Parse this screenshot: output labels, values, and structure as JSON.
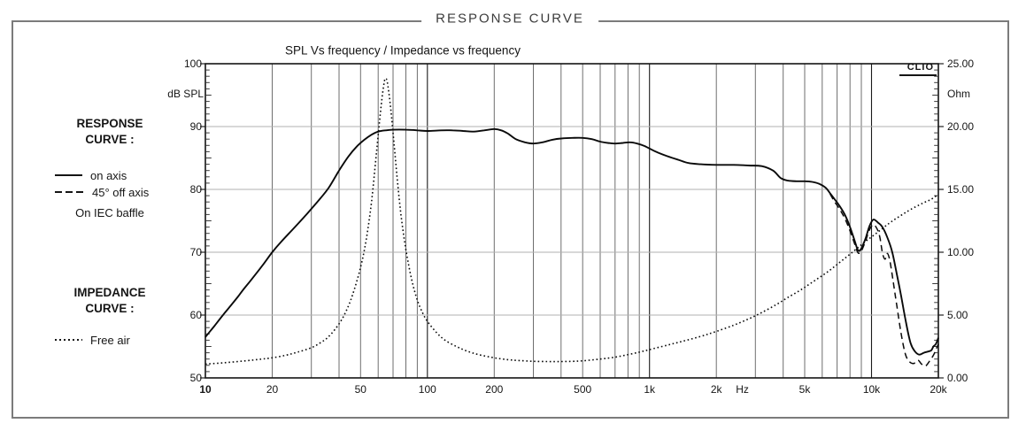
{
  "panel": {
    "title": "RESPONSE CURVE"
  },
  "chart": {
    "title": "SPL Vs frequency / Impedance vs frequency",
    "watermark": "CLIO",
    "left_axis": {
      "unit": "dB SPL",
      "tick_labels": [
        "100",
        "90",
        "80",
        "70",
        "60",
        "50"
      ]
    },
    "right_axis": {
      "unit": "Ohm",
      "tick_labels": [
        "25.00",
        "20.00",
        "15.00",
        "10.00",
        "5.00",
        "0.00"
      ]
    },
    "x_axis": {
      "unit_label": "Hz",
      "tick_labels": [
        {
          "text": "10",
          "f": 10,
          "bold": true
        },
        {
          "text": "20",
          "f": 20
        },
        {
          "text": "50",
          "f": 50
        },
        {
          "text": "100",
          "f": 100
        },
        {
          "text": "200",
          "f": 200
        },
        {
          "text": "500",
          "f": 500
        },
        {
          "text": "1k",
          "f": 1000
        },
        {
          "text": "2k",
          "f": 2000
        },
        {
          "text": "Hz",
          "f": 2620
        },
        {
          "text": "5k",
          "f": 5000
        },
        {
          "text": "10k",
          "f": 10000
        },
        {
          "text": "20k",
          "f": 20000
        }
      ]
    }
  },
  "sidebar": {
    "response_heading_line1": "RESPONSE",
    "response_heading_line2": "CURVE :",
    "legend_on_axis": "on axis",
    "legend_off_axis": "45° off axis",
    "baffle_note": "On IEC baffle",
    "impedance_heading_line1": "IMPEDANCE",
    "impedance_heading_line2": "CURVE :",
    "legend_free_air": "Free air"
  },
  "colors": {
    "curve": "#0a0a0a",
    "frame": "#141414",
    "grid_vertical": "#6e6e6e",
    "grid_decade": "#1a1a1a",
    "grid_horizontal": "#b0b0b0",
    "panel_border": "#7b7b7b"
  },
  "chart_data": {
    "type": "line",
    "title": "SPL Vs frequency / Impedance vs frequency",
    "x_scale": "log",
    "x_range_hz": [
      10,
      20000
    ],
    "y_left": {
      "label": "dB SPL",
      "range": [
        50,
        100
      ],
      "major_step": 10
    },
    "y_right": {
      "label": "Ohm",
      "range": [
        0,
        25
      ],
      "major_step": 5
    },
    "grid": {
      "horizontal_db": [
        60,
        70,
        80,
        90
      ],
      "vertical": "log minor lines 2-9 each decade plus decade lines"
    },
    "legend_position": "left margin",
    "series": [
      {
        "name": "on axis",
        "axis": "left",
        "unit": "dB SPL",
        "style": "solid",
        "points": [
          [
            10,
            56.5
          ],
          [
            11,
            58.3
          ],
          [
            12,
            60
          ],
          [
            13,
            61.5
          ],
          [
            14,
            62.9
          ],
          [
            15,
            64.3
          ],
          [
            16,
            65.5
          ],
          [
            18,
            67.8
          ],
          [
            20,
            70
          ],
          [
            22,
            71.7
          ],
          [
            25,
            73.8
          ],
          [
            28,
            75.7
          ],
          [
            30,
            76.9
          ],
          [
            33,
            78.6
          ],
          [
            36,
            80.3
          ],
          [
            40,
            83
          ],
          [
            44,
            85.2
          ],
          [
            48,
            86.8
          ],
          [
            52,
            87.9
          ],
          [
            56,
            88.7
          ],
          [
            60,
            89.2
          ],
          [
            65,
            89.4
          ],
          [
            70,
            89.5
          ],
          [
            80,
            89.5
          ],
          [
            90,
            89.4
          ],
          [
            100,
            89.3
          ],
          [
            115,
            89.4
          ],
          [
            130,
            89.4
          ],
          [
            145,
            89.3
          ],
          [
            160,
            89.2
          ],
          [
            180,
            89.4
          ],
          [
            200,
            89.6
          ],
          [
            215,
            89.4
          ],
          [
            230,
            88.9
          ],
          [
            250,
            88
          ],
          [
            275,
            87.5
          ],
          [
            300,
            87.3
          ],
          [
            330,
            87.5
          ],
          [
            365,
            87.9
          ],
          [
            400,
            88.1
          ],
          [
            450,
            88.2
          ],
          [
            500,
            88.2
          ],
          [
            550,
            88
          ],
          [
            600,
            87.6
          ],
          [
            650,
            87.4
          ],
          [
            700,
            87.3
          ],
          [
            760,
            87.4
          ],
          [
            820,
            87.5
          ],
          [
            880,
            87.3
          ],
          [
            950,
            86.9
          ],
          [
            1000,
            86.5
          ],
          [
            1100,
            85.8
          ],
          [
            1200,
            85.3
          ],
          [
            1350,
            84.7
          ],
          [
            1500,
            84.2
          ],
          [
            1700,
            84
          ],
          [
            2000,
            83.9
          ],
          [
            2400,
            83.9
          ],
          [
            2800,
            83.8
          ],
          [
            3200,
            83.7
          ],
          [
            3600,
            83
          ],
          [
            3900,
            81.8
          ],
          [
            4200,
            81.4
          ],
          [
            4600,
            81.3
          ],
          [
            5000,
            81.3
          ],
          [
            5400,
            81.2
          ],
          [
            5800,
            80.9
          ],
          [
            6200,
            80.3
          ],
          [
            6500,
            79.4
          ],
          [
            6800,
            78.5
          ],
          [
            7200,
            77.3
          ],
          [
            7600,
            75.9
          ],
          [
            8000,
            74
          ],
          [
            8400,
            71.8
          ],
          [
            8700,
            70.3
          ],
          [
            9000,
            70.6
          ],
          [
            9400,
            72.2
          ],
          [
            9800,
            74.2
          ],
          [
            10200,
            75.2
          ],
          [
            10700,
            74.7
          ],
          [
            11200,
            74
          ],
          [
            11800,
            72.3
          ],
          [
            12400,
            70
          ],
          [
            13000,
            66.5
          ],
          [
            13600,
            63
          ],
          [
            14300,
            58.8
          ],
          [
            15000,
            55.5
          ],
          [
            15700,
            54.2
          ],
          [
            16400,
            53.7
          ],
          [
            17200,
            54
          ],
          [
            18000,
            54.2
          ],
          [
            18600,
            54.4
          ],
          [
            19000,
            55
          ],
          [
            19500,
            55.4
          ],
          [
            20000,
            56.4
          ]
        ]
      },
      {
        "name": "45° off axis",
        "axis": "left",
        "unit": "dB SPL",
        "style": "dashed",
        "points": [
          [
            6500,
            79.3
          ],
          [
            6800,
            78.1
          ],
          [
            7200,
            76.8
          ],
          [
            7600,
            75.3
          ],
          [
            8000,
            73.4
          ],
          [
            8400,
            71.3
          ],
          [
            8700,
            69.9
          ],
          [
            9000,
            70.2
          ],
          [
            9400,
            71.8
          ],
          [
            9800,
            73.6
          ],
          [
            10200,
            74.4
          ],
          [
            10600,
            73.7
          ],
          [
            10900,
            72.4
          ],
          [
            11200,
            69.9
          ],
          [
            11500,
            68.9
          ],
          [
            11800,
            69.8
          ],
          [
            12100,
            68.6
          ],
          [
            12500,
            65.5
          ],
          [
            13000,
            61.5
          ],
          [
            13600,
            57
          ],
          [
            14200,
            53.8
          ],
          [
            14800,
            52.6
          ],
          [
            15500,
            52.3
          ],
          [
            16200,
            52.8
          ],
          [
            16800,
            52.2
          ],
          [
            17500,
            51.9
          ],
          [
            18200,
            52.6
          ],
          [
            19000,
            53.6
          ],
          [
            19500,
            54.5
          ],
          [
            20000,
            55.4
          ]
        ]
      },
      {
        "name": "Free air",
        "axis": "right",
        "unit": "Ohm",
        "style": "dotted",
        "points": [
          [
            10,
            1.1
          ],
          [
            12,
            1.2
          ],
          [
            15,
            1.35
          ],
          [
            18,
            1.5
          ],
          [
            20,
            1.6
          ],
          [
            23,
            1.8
          ],
          [
            26,
            2.05
          ],
          [
            30,
            2.4
          ],
          [
            33,
            2.8
          ],
          [
            36,
            3.3
          ],
          [
            40,
            4.3
          ],
          [
            43,
            5.3
          ],
          [
            46,
            6.6
          ],
          [
            50,
            8.8
          ],
          [
            53,
            11
          ],
          [
            56,
            14
          ],
          [
            59,
            18
          ],
          [
            62,
            21.8
          ],
          [
            64,
            23.6
          ],
          [
            65,
            23.8
          ],
          [
            66,
            23.5
          ],
          [
            68,
            21.8
          ],
          [
            70,
            19.5
          ],
          [
            73,
            16
          ],
          [
            76,
            13
          ],
          [
            80,
            10.2
          ],
          [
            85,
            7.8
          ],
          [
            90,
            6.2
          ],
          [
            95,
            5.2
          ],
          [
            100,
            4.5
          ],
          [
            110,
            3.6
          ],
          [
            120,
            3
          ],
          [
            135,
            2.5
          ],
          [
            150,
            2.15
          ],
          [
            170,
            1.85
          ],
          [
            200,
            1.6
          ],
          [
            230,
            1.45
          ],
          [
            260,
            1.38
          ],
          [
            300,
            1.32
          ],
          [
            350,
            1.3
          ],
          [
            400,
            1.3
          ],
          [
            450,
            1.32
          ],
          [
            500,
            1.36
          ],
          [
            600,
            1.5
          ],
          [
            700,
            1.65
          ],
          [
            800,
            1.85
          ],
          [
            900,
            2.05
          ],
          [
            1000,
            2.25
          ],
          [
            1200,
            2.6
          ],
          [
            1400,
            2.9
          ],
          [
            1700,
            3.3
          ],
          [
            2000,
            3.7
          ],
          [
            2400,
            4.2
          ],
          [
            2800,
            4.7
          ],
          [
            3200,
            5.2
          ],
          [
            3700,
            5.8
          ],
          [
            4200,
            6.4
          ],
          [
            4800,
            7
          ],
          [
            5500,
            7.7
          ],
          [
            6300,
            8.4
          ],
          [
            7200,
            9.2
          ],
          [
            8200,
            10
          ],
          [
            9300,
            10.8
          ],
          [
            10500,
            11.5
          ],
          [
            12000,
            12.3
          ],
          [
            13500,
            12.9
          ],
          [
            15000,
            13.4
          ],
          [
            17000,
            13.9
          ],
          [
            18500,
            14.2
          ],
          [
            20000,
            14.6
          ]
        ]
      }
    ]
  }
}
